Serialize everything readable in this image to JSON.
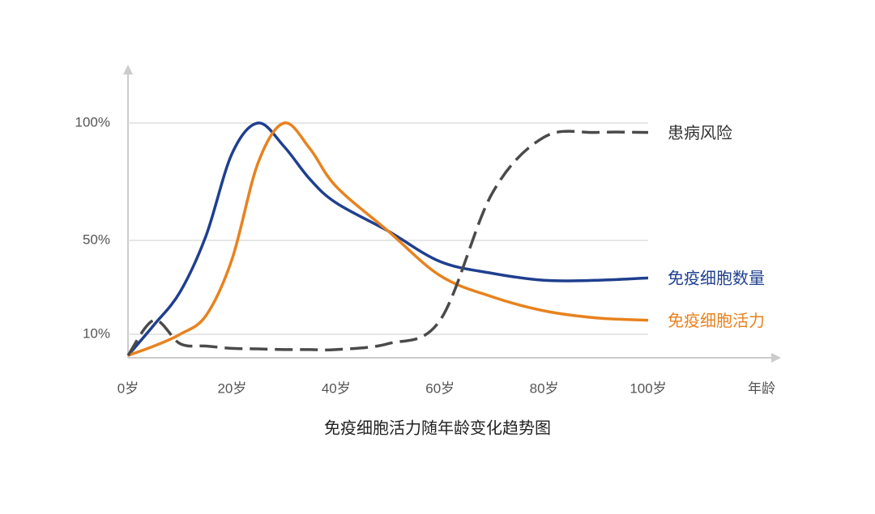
{
  "chart_data": {
    "type": "line",
    "title": "免疫细胞活力随年龄变化趋势图",
    "x_label": "年龄",
    "x": [
      0,
      5,
      10,
      15,
      20,
      25,
      30,
      35,
      40,
      50,
      60,
      70,
      80,
      90,
      100
    ],
    "series": [
      {
        "name": "免疫细胞数量",
        "color": "#1f3f8f",
        "dashed": false,
        "values": [
          1,
          14,
          28,
          52,
          87,
          100,
          90,
          76,
          66,
          54,
          41,
          36,
          33,
          33,
          34
        ]
      },
      {
        "name": "免疫细胞活力",
        "color": "#e8821e",
        "dashed": false,
        "values": [
          1,
          5,
          10,
          18,
          42,
          83,
          100,
          89,
          73,
          54,
          35,
          26,
          20,
          17,
          16
        ]
      },
      {
        "name": "患病风险",
        "color": "#4a4a4a",
        "dashed": true,
        "values": [
          1,
          16,
          6,
          5,
          4,
          3.8,
          3.5,
          3.5,
          3.5,
          6,
          16,
          70,
          94,
          96,
          96
        ]
      }
    ],
    "xlim": [
      0,
      100
    ],
    "xticks": [
      {
        "value": 0,
        "label": "0岁"
      },
      {
        "value": 20,
        "label": "20岁"
      },
      {
        "value": 40,
        "label": "40岁"
      },
      {
        "value": 60,
        "label": "60岁"
      },
      {
        "value": 80,
        "label": "80岁"
      },
      {
        "value": 100,
        "label": "100岁"
      }
    ],
    "ylim": [
      0,
      100
    ],
    "yticks": [
      {
        "value": 10,
        "label": "10%"
      },
      {
        "value": 50,
        "label": "50%"
      },
      {
        "value": 100,
        "label": "100%"
      }
    ],
    "grid": true
  }
}
